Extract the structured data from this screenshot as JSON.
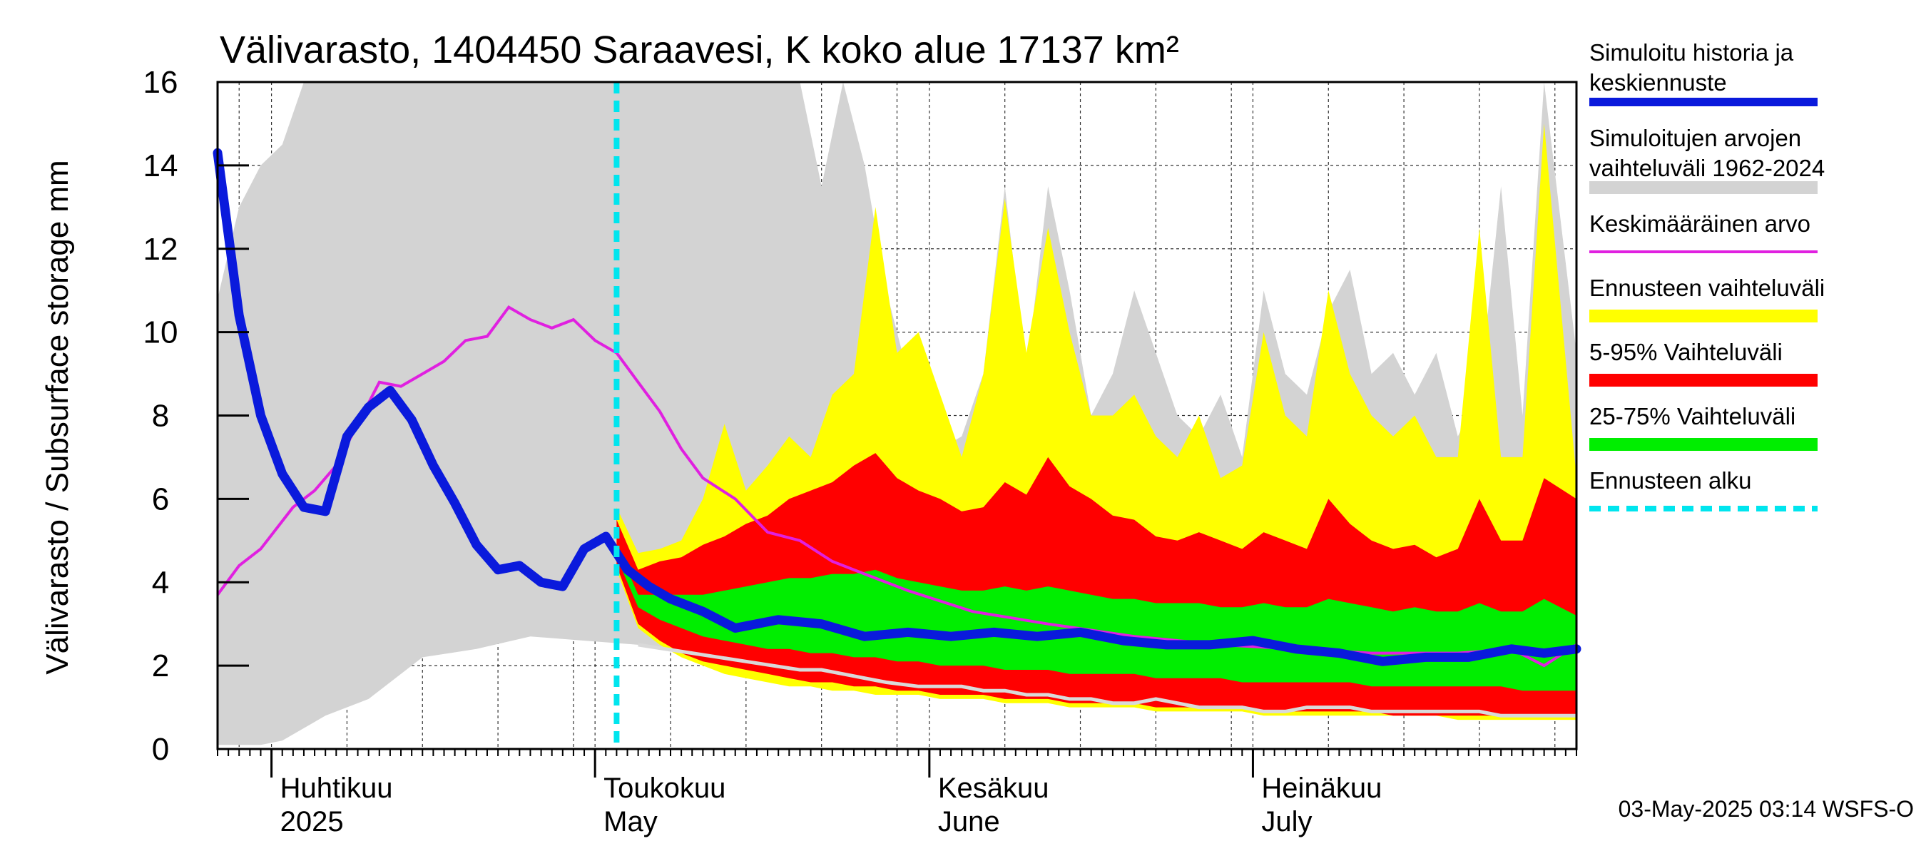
{
  "chart_data": {
    "type": "area",
    "title": "Välivarasto, 1404450 Saraavesi, K koko alue 17137 km²",
    "ylabel": "Välivarasto / Subsurface storage  mm",
    "ylim": [
      0,
      16
    ],
    "yticks": [
      0,
      2,
      4,
      6,
      8,
      10,
      12,
      14,
      16
    ],
    "xlim": [
      "2025-03-27",
      "2025-07-31"
    ],
    "x_month_labels": [
      {
        "date": "2025-04-01",
        "fi": "Huhtikuu",
        "en": "2025"
      },
      {
        "date": "2025-05-01",
        "fi": "Toukokuu",
        "en": "May"
      },
      {
        "date": "2025-06-01",
        "fi": "Kesäkuu",
        "en": "June"
      },
      {
        "date": "2025-07-01",
        "fi": "Heinäkuu",
        "en": "July"
      }
    ],
    "grid": true,
    "legend_position": "right",
    "forecast_start": "2025-05-03",
    "legend": [
      {
        "key": "sim",
        "label1": "Simuloitu historia ja",
        "label2": "keskiennuste",
        "color": "#0a1adc",
        "style": "thick"
      },
      {
        "key": "hist_range",
        "label1": "Simuloitujen arvojen",
        "label2": "vaihteluväli 1962-2024",
        "color": "#d3d3d3",
        "style": "band"
      },
      {
        "key": "mean",
        "label1": "Keskimääräinen arvo",
        "label2": "",
        "color": "#e020e0",
        "style": "line"
      },
      {
        "key": "fc_range",
        "label1": "Ennusteen vaihteluväli",
        "label2": "",
        "color": "#ffff00",
        "style": "band"
      },
      {
        "key": "p5_95",
        "label1": "5-95% Vaihteluväli",
        "label2": "",
        "color": "#ff0000",
        "style": "band"
      },
      {
        "key": "p25_75",
        "label1": "25-75% Vaihteluväli",
        "label2": "",
        "color": "#00ee00",
        "style": "band"
      },
      {
        "key": "fc_start",
        "label1": "Ennusteen alku",
        "label2": "",
        "color": "#00e5ee",
        "style": "dashed"
      }
    ],
    "series": {
      "hist_range": {
        "name": "Simuloitujen arvojen vaihteluväli 1962-2024",
        "x": [
          "2025-03-27",
          "2025-03-29",
          "2025-03-31",
          "2025-04-02",
          "2025-04-04",
          "2025-04-06",
          "2025-04-10",
          "2025-04-15",
          "2025-04-20",
          "2025-04-25",
          "2025-04-30",
          "2025-05-05",
          "2025-05-10",
          "2025-05-15",
          "2025-05-20",
          "2025-05-22",
          "2025-05-24",
          "2025-05-26",
          "2025-05-28",
          "2025-05-31",
          "2025-06-02",
          "2025-06-04",
          "2025-06-06",
          "2025-06-08",
          "2025-06-10",
          "2025-06-12",
          "2025-06-14",
          "2025-06-16",
          "2025-06-18",
          "2025-06-20",
          "2025-06-22",
          "2025-06-24",
          "2025-06-26",
          "2025-06-28",
          "2025-06-30",
          "2025-07-02",
          "2025-07-04",
          "2025-07-06",
          "2025-07-08",
          "2025-07-10",
          "2025-07-12",
          "2025-07-14",
          "2025-07-16",
          "2025-07-18",
          "2025-07-20",
          "2025-07-22",
          "2025-07-24",
          "2025-07-26",
          "2025-07-28",
          "2025-07-31"
        ],
        "upper": [
          10.8,
          13.0,
          14.0,
          14.5,
          16.0,
          16.0,
          16.0,
          16.0,
          16.0,
          16.0,
          16.0,
          16.0,
          16.0,
          16.0,
          16.0,
          13.5,
          16.0,
          14.0,
          11.0,
          8.0,
          7.2,
          7.5,
          9.0,
          13.5,
          9.0,
          13.5,
          11.0,
          8.0,
          9.0,
          11.0,
          9.5,
          8.0,
          7.5,
          8.5,
          7.0,
          11.0,
          9.0,
          8.5,
          10.5,
          11.5,
          9.0,
          9.5,
          8.5,
          9.5,
          7.5,
          8.5,
          13.5,
          8.0,
          16.0,
          9.5
        ],
        "lower": [
          0.1,
          0.1,
          0.1,
          0.2,
          0.5,
          0.8,
          1.2,
          2.2,
          2.4,
          2.7,
          2.6,
          2.5,
          2.3,
          2.1,
          1.9,
          1.9,
          1.8,
          1.7,
          1.6,
          1.5,
          1.5,
          1.5,
          1.4,
          1.4,
          1.3,
          1.3,
          1.2,
          1.2,
          1.1,
          1.1,
          1.2,
          1.1,
          1.0,
          1.0,
          1.0,
          0.9,
          0.9,
          1.0,
          1.0,
          1.0,
          0.9,
          0.9,
          0.9,
          0.9,
          0.9,
          0.9,
          0.8,
          0.8,
          0.8,
          0.8
        ]
      },
      "forecast_bands": {
        "x": [
          "2025-05-03",
          "2025-05-05",
          "2025-05-07",
          "2025-05-09",
          "2025-05-11",
          "2025-05-13",
          "2025-05-15",
          "2025-05-17",
          "2025-05-19",
          "2025-05-21",
          "2025-05-23",
          "2025-05-25",
          "2025-05-27",
          "2025-05-29",
          "2025-05-31",
          "2025-06-02",
          "2025-06-04",
          "2025-06-06",
          "2025-06-08",
          "2025-06-10",
          "2025-06-12",
          "2025-06-14",
          "2025-06-16",
          "2025-06-18",
          "2025-06-20",
          "2025-06-22",
          "2025-06-24",
          "2025-06-26",
          "2025-06-28",
          "2025-06-30",
          "2025-07-02",
          "2025-07-04",
          "2025-07-06",
          "2025-07-08",
          "2025-07-10",
          "2025-07-12",
          "2025-07-14",
          "2025-07-16",
          "2025-07-18",
          "2025-07-20",
          "2025-07-22",
          "2025-07-24",
          "2025-07-26",
          "2025-07-28",
          "2025-07-31"
        ],
        "fc_upper": [
          5.8,
          4.7,
          4.8,
          5.0,
          6.0,
          7.8,
          6.2,
          6.8,
          7.5,
          7.0,
          8.5,
          9.0,
          13.0,
          9.5,
          10.0,
          8.5,
          7.0,
          9.0,
          13.2,
          9.5,
          12.5,
          10.0,
          8.0,
          8.0,
          8.5,
          7.5,
          7.0,
          8.0,
          6.5,
          6.8,
          10.0,
          8.0,
          7.5,
          11.0,
          9.0,
          8.0,
          7.5,
          8.0,
          7.0,
          7.0,
          12.5,
          7.0,
          7.0,
          15.0,
          6.5
        ],
        "p95": [
          5.5,
          4.3,
          4.5,
          4.6,
          4.9,
          5.1,
          5.4,
          5.6,
          6.0,
          6.2,
          6.4,
          6.8,
          7.1,
          6.5,
          6.2,
          6.0,
          5.7,
          5.8,
          6.4,
          6.1,
          7.0,
          6.3,
          6.0,
          5.6,
          5.5,
          5.1,
          5.0,
          5.2,
          5.0,
          4.8,
          5.2,
          5.0,
          4.8,
          6.0,
          5.4,
          5.0,
          4.8,
          4.9,
          4.6,
          4.8,
          6.0,
          5.0,
          5.0,
          6.5,
          6.0
        ],
        "p75": [
          4.9,
          3.7,
          3.7,
          3.7,
          3.7,
          3.8,
          3.9,
          4.0,
          4.1,
          4.1,
          4.2,
          4.2,
          4.3,
          4.1,
          4.0,
          3.9,
          3.8,
          3.8,
          3.9,
          3.8,
          3.9,
          3.8,
          3.7,
          3.6,
          3.6,
          3.5,
          3.5,
          3.5,
          3.4,
          3.4,
          3.5,
          3.4,
          3.4,
          3.6,
          3.5,
          3.4,
          3.3,
          3.4,
          3.3,
          3.3,
          3.5,
          3.3,
          3.3,
          3.6,
          3.2
        ],
        "p25": [
          4.6,
          3.4,
          3.1,
          2.9,
          2.7,
          2.6,
          2.5,
          2.4,
          2.4,
          2.3,
          2.3,
          2.2,
          2.2,
          2.1,
          2.1,
          2.0,
          2.0,
          2.0,
          1.9,
          1.9,
          1.9,
          1.8,
          1.8,
          1.8,
          1.8,
          1.7,
          1.7,
          1.7,
          1.7,
          1.6,
          1.6,
          1.6,
          1.6,
          1.6,
          1.6,
          1.5,
          1.5,
          1.5,
          1.5,
          1.5,
          1.5,
          1.5,
          1.4,
          1.4,
          1.4
        ],
        "p5": [
          4.4,
          3.0,
          2.6,
          2.3,
          2.1,
          2.0,
          1.9,
          1.8,
          1.7,
          1.6,
          1.6,
          1.5,
          1.5,
          1.4,
          1.4,
          1.3,
          1.3,
          1.3,
          1.2,
          1.2,
          1.2,
          1.1,
          1.1,
          1.1,
          1.1,
          1.0,
          1.0,
          1.0,
          1.0,
          1.0,
          0.9,
          0.9,
          0.9,
          0.9,
          0.9,
          0.9,
          0.8,
          0.8,
          0.8,
          0.8,
          0.8,
          0.8,
          0.8,
          0.8,
          0.8
        ],
        "fc_lower": [
          4.3,
          2.9,
          2.5,
          2.2,
          2.0,
          1.8,
          1.7,
          1.6,
          1.5,
          1.5,
          1.4,
          1.4,
          1.3,
          1.3,
          1.3,
          1.2,
          1.2,
          1.2,
          1.1,
          1.1,
          1.1,
          1.0,
          1.0,
          1.0,
          1.0,
          0.9,
          0.9,
          0.9,
          0.9,
          0.9,
          0.8,
          0.8,
          0.8,
          0.8,
          0.8,
          0.8,
          0.8,
          0.8,
          0.8,
          0.7,
          0.7,
          0.7,
          0.7,
          0.7,
          0.7
        ]
      },
      "mean": {
        "name": "Keskimääräinen arvo",
        "x": [
          "2025-03-27",
          "2025-03-29",
          "2025-03-31",
          "2025-04-03",
          "2025-04-05",
          "2025-04-07",
          "2025-04-09",
          "2025-04-11",
          "2025-04-13",
          "2025-04-15",
          "2025-04-17",
          "2025-04-19",
          "2025-04-21",
          "2025-04-23",
          "2025-04-25",
          "2025-04-27",
          "2025-04-29",
          "2025-05-01",
          "2025-05-03",
          "2025-05-05",
          "2025-05-07",
          "2025-05-09",
          "2025-05-11",
          "2025-05-14",
          "2025-05-17",
          "2025-05-20",
          "2025-05-23",
          "2025-05-26",
          "2025-05-30",
          "2025-06-05",
          "2025-06-12",
          "2025-06-20",
          "2025-06-28",
          "2025-07-05",
          "2025-07-12",
          "2025-07-20",
          "2025-07-25",
          "2025-07-28",
          "2025-07-31"
        ],
        "values": [
          3.7,
          4.4,
          4.8,
          5.8,
          6.2,
          6.8,
          7.8,
          8.8,
          8.7,
          9.0,
          9.3,
          9.8,
          9.9,
          10.6,
          10.3,
          10.1,
          10.3,
          9.8,
          9.5,
          8.8,
          8.1,
          7.2,
          6.5,
          6.0,
          5.2,
          5.0,
          4.5,
          4.2,
          3.8,
          3.3,
          3.0,
          2.7,
          2.5,
          2.4,
          2.3,
          2.3,
          2.4,
          2.0,
          2.5
        ]
      },
      "sim": {
        "name": "Simuloitu historia ja keskiennuste",
        "x": [
          "2025-03-27",
          "2025-03-29",
          "2025-03-31",
          "2025-04-02",
          "2025-04-04",
          "2025-04-06",
          "2025-04-08",
          "2025-04-10",
          "2025-04-12",
          "2025-04-14",
          "2025-04-16",
          "2025-04-18",
          "2025-04-20",
          "2025-04-22",
          "2025-04-24",
          "2025-04-26",
          "2025-04-28",
          "2025-04-30",
          "2025-05-02",
          "2025-05-04",
          "2025-05-06",
          "2025-05-08",
          "2025-05-11",
          "2025-05-14",
          "2025-05-18",
          "2025-05-22",
          "2025-05-26",
          "2025-05-30",
          "2025-06-03",
          "2025-06-07",
          "2025-06-11",
          "2025-06-15",
          "2025-06-19",
          "2025-06-23",
          "2025-06-27",
          "2025-07-01",
          "2025-07-05",
          "2025-07-09",
          "2025-07-13",
          "2025-07-17",
          "2025-07-21",
          "2025-07-25",
          "2025-07-28",
          "2025-07-31"
        ],
        "values": [
          14.3,
          10.4,
          8.0,
          6.6,
          5.8,
          5.7,
          7.5,
          8.2,
          8.6,
          7.9,
          6.8,
          5.9,
          4.9,
          4.3,
          4.4,
          4.0,
          3.9,
          4.8,
          5.1,
          4.3,
          3.9,
          3.6,
          3.3,
          2.9,
          3.1,
          3.0,
          2.7,
          2.8,
          2.7,
          2.8,
          2.7,
          2.8,
          2.6,
          2.5,
          2.5,
          2.6,
          2.4,
          2.3,
          2.1,
          2.2,
          2.2,
          2.4,
          2.3,
          2.4
        ]
      }
    }
  },
  "footer": "03-May-2025 03:14 WSFS-O"
}
